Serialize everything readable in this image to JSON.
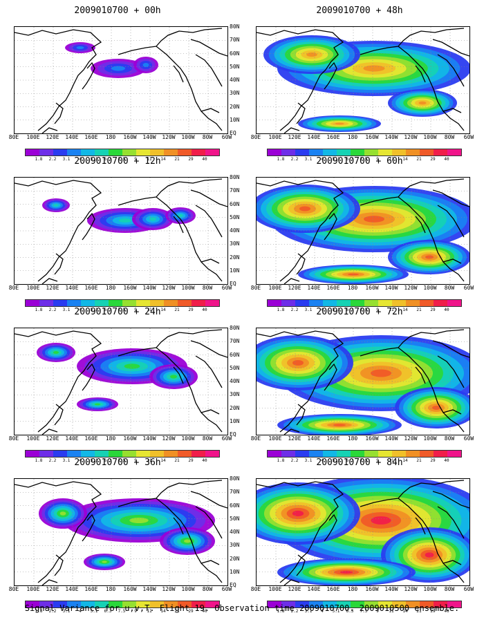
{
  "panels": [
    {
      "title": "2009010700 + 00h",
      "intensity": 0.15
    },
    {
      "title": "2009010700 + 12h",
      "intensity": 0.35
    },
    {
      "title": "2009010700 + 24h",
      "intensity": 0.5
    },
    {
      "title": "2009010700 + 36h",
      "intensity": 0.6
    },
    {
      "title": "2009010700 + 48h",
      "intensity": 0.75
    },
    {
      "title": "2009010700 + 60h",
      "intensity": 0.85
    },
    {
      "title": "2009010700 + 72h",
      "intensity": 0.9
    },
    {
      "title": "2009010700 + 84h",
      "intensity": 1.0
    }
  ],
  "lat_labels": [
    "80N",
    "70N",
    "60N",
    "50N",
    "40N",
    "30N",
    "20N",
    "10N",
    "EQ"
  ],
  "lon_labels": [
    "80E",
    "100E",
    "120E",
    "140E",
    "160E",
    "180",
    "160W",
    "140W",
    "120W",
    "100W",
    "80W",
    "60W"
  ],
  "colorbar": {
    "labels": [
      "1.8",
      "2.2",
      "3.1",
      "4",
      "5.1",
      "6.3",
      "7.5",
      "9",
      "11",
      "14",
      "21",
      "29",
      "40"
    ],
    "colors": [
      "#9b00d6",
      "#6e2ee8",
      "#2a3cf0",
      "#1a82f2",
      "#12b8e6",
      "#16d2b4",
      "#2ad83a",
      "#96e030",
      "#e6e632",
      "#f0c02a",
      "#f09024",
      "#f05a28",
      "#f01e4a",
      "#f0148a"
    ]
  },
  "caption": "Signal Variance for u,v,T. Flight 19. Observation time 2009010700. 2009010500 ensemble."
}
